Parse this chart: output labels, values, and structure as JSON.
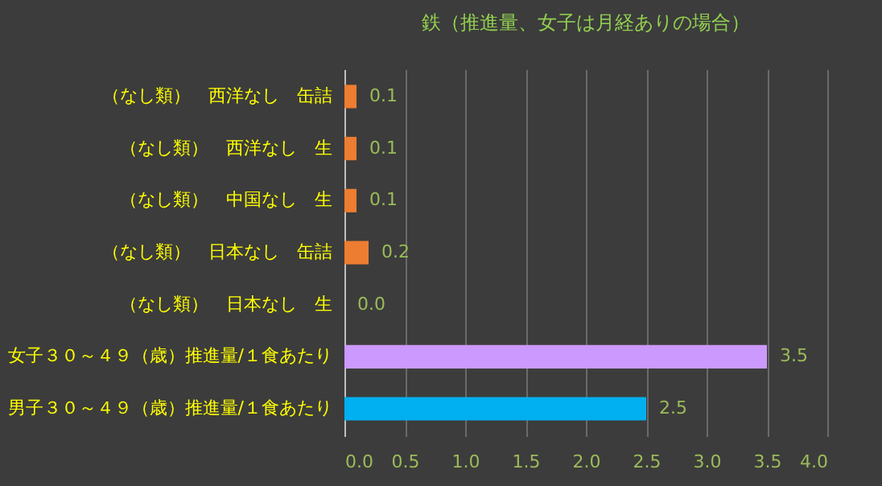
{
  "chart_data": {
    "type": "bar",
    "orientation": "horizontal",
    "title": "鉄（推進量、女子は月経ありの場合）",
    "categories": [
      "（なし類）　西洋なし　缶詰",
      "（なし類）　西洋なし　生",
      "（なし類）　中国なし　生",
      "（なし類）　日本なし　缶詰",
      "（なし類）　日本なし　生",
      "女子３０～４９（歳）推進量/１食あたり",
      "男子３０～４９（歳）推進量/１食あたり"
    ],
    "values": [
      0.1,
      0.1,
      0.1,
      0.2,
      0,
      3.5,
      2.5
    ],
    "colors": [
      "#ed7d31",
      "#ed7d31",
      "#ed7d31",
      "#ed7d31",
      "#ed7d31",
      "#cc99ff",
      "#00b0f0"
    ],
    "value_labels": [
      "0.1",
      "0.1",
      "0.1",
      "0.2",
      "0.0",
      "3.5",
      "2.5"
    ],
    "xlim": [
      0,
      4
    ],
    "xticks": [
      {
        "value": 0,
        "label": "0.0"
      },
      {
        "value": 0.5,
        "label": "0.5"
      },
      {
        "value": 1,
        "label": "1.0"
      },
      {
        "value": 1.5,
        "label": "1.5"
      },
      {
        "value": 2,
        "label": "2.0"
      },
      {
        "value": 2.5,
        "label": "2.5"
      },
      {
        "value": 3,
        "label": "3.0"
      },
      {
        "value": 3.5,
        "label": "3.5"
      },
      {
        "value": 4,
        "label": "4.0"
      }
    ],
    "grid": "x"
  }
}
